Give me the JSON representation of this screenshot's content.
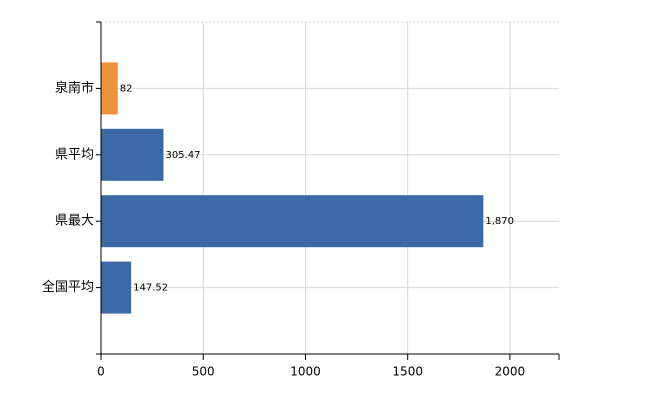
{
  "chart_data": {
    "type": "hbar",
    "categories": [
      "泉南市",
      "県平均",
      "県最大",
      "全国平均"
    ],
    "values": [
      82,
      305.47,
      1870,
      147.52
    ],
    "value_labels": [
      "82",
      "305.47",
      "1,870",
      "147.52"
    ],
    "colors": [
      "#f0923a",
      "#3b69a5",
      "#3b69a5",
      "#3b69a5"
    ],
    "xlim": [
      0,
      2240
    ],
    "xticks": [
      0,
      500,
      1000,
      1500,
      2000
    ],
    "grid": true
  }
}
